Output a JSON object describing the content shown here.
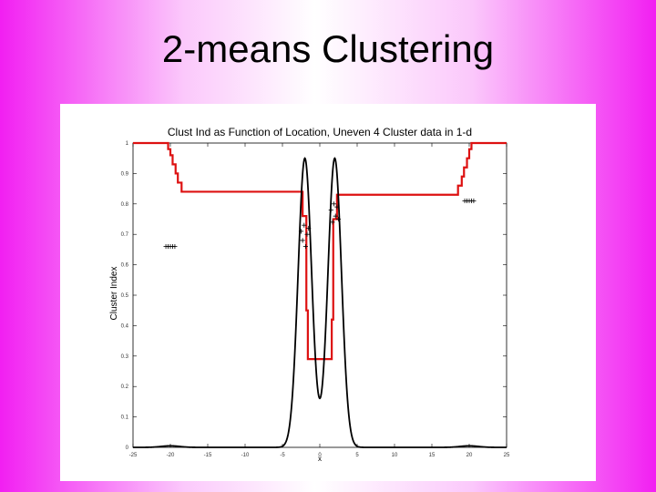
{
  "slide": {
    "title": "2-means Clustering"
  },
  "chart_data": {
    "type": "line",
    "title": "Clust Ind as Function of Location, Uneven 4 Cluster data in 1-d",
    "xlabel": "x",
    "ylabel": "Cluster Index",
    "xlim": [
      -25,
      25
    ],
    "ylim": [
      0,
      1
    ],
    "xticks": [
      -25,
      -20,
      -15,
      -10,
      -5,
      0,
      5,
      10,
      15,
      20,
      25
    ],
    "xtick_labels": [
      "-25",
      "-20",
      "-15",
      "-10",
      "-5",
      "0",
      "5",
      "10",
      "15",
      "20",
      "25"
    ],
    "yticks": [
      0,
      0.1,
      0.2,
      0.3,
      0.4,
      0.5,
      0.6,
      0.7,
      0.8,
      0.9,
      1
    ],
    "ytick_labels": [
      "0",
      "0.1",
      "0.2",
      "0.3",
      "0.4",
      "0.5",
      "0.6",
      "0.7",
      "0.8",
      "0.9",
      "1"
    ],
    "grid": false,
    "series": [
      {
        "color": "#dd1111",
        "x": [
          -25,
          -20.3,
          -20.3,
          -20,
          -20,
          -19.7,
          -19.7,
          -19.3,
          -19.3,
          -19,
          -19,
          -18.5,
          -18.5,
          -2.3,
          -2.3,
          -1.8,
          -1.8,
          -1.6,
          -1.6,
          1.6,
          1.6,
          1.8,
          1.8,
          2.3,
          2.3,
          18.5,
          18.5,
          19,
          19,
          19.3,
          19.3,
          19.7,
          19.7,
          20,
          20,
          20.3,
          20.3,
          25
        ],
        "y": [
          1,
          1,
          0.98,
          0.98,
          0.96,
          0.96,
          0.93,
          0.93,
          0.9,
          0.9,
          0.87,
          0.87,
          0.84,
          0.84,
          0.76,
          0.76,
          0.45,
          0.45,
          0.29,
          0.29,
          0.42,
          0.42,
          0.75,
          0.75,
          0.83,
          0.83,
          0.86,
          0.86,
          0.89,
          0.89,
          0.92,
          0.92,
          0.95,
          0.95,
          0.98,
          0.98,
          1,
          1
        ]
      },
      {
        "color": "#000000",
        "density_components": [
          {
            "center": -2,
            "height": 0.95,
            "width": 0.9
          },
          {
            "center": 2,
            "height": 0.95,
            "width": 0.9
          },
          {
            "center": -20,
            "height": 0.005,
            "width": 1.2
          },
          {
            "center": 20,
            "height": 0.005,
            "width": 1.2
          }
        ]
      }
    ],
    "point_groups": [
      {
        "marker": "+",
        "color": "#000000",
        "x": [
          -20.6,
          -20.3,
          -20,
          -19.7,
          -19.4
        ],
        "y": [
          0.66,
          0.66,
          0.66,
          0.66,
          0.66
        ]
      },
      {
        "marker": "+",
        "color": "#000000",
        "x": [
          -2.5,
          -2.3,
          -2.1,
          -1.9,
          -1.7,
          -1.5
        ],
        "y": [
          0.71,
          0.68,
          0.73,
          0.66,
          0.7,
          0.72
        ]
      },
      {
        "marker": "+",
        "color": "#000000",
        "x": [
          1.5,
          1.7,
          1.9,
          2.1,
          2.3,
          2.5
        ],
        "y": [
          0.78,
          0.74,
          0.8,
          0.76,
          0.79,
          0.75
        ]
      },
      {
        "marker": "+",
        "color": "#000000",
        "x": [
          19.4,
          19.7,
          20,
          20.3,
          20.6
        ],
        "y": [
          0.81,
          0.81,
          0.81,
          0.81,
          0.81
        ]
      }
    ]
  }
}
